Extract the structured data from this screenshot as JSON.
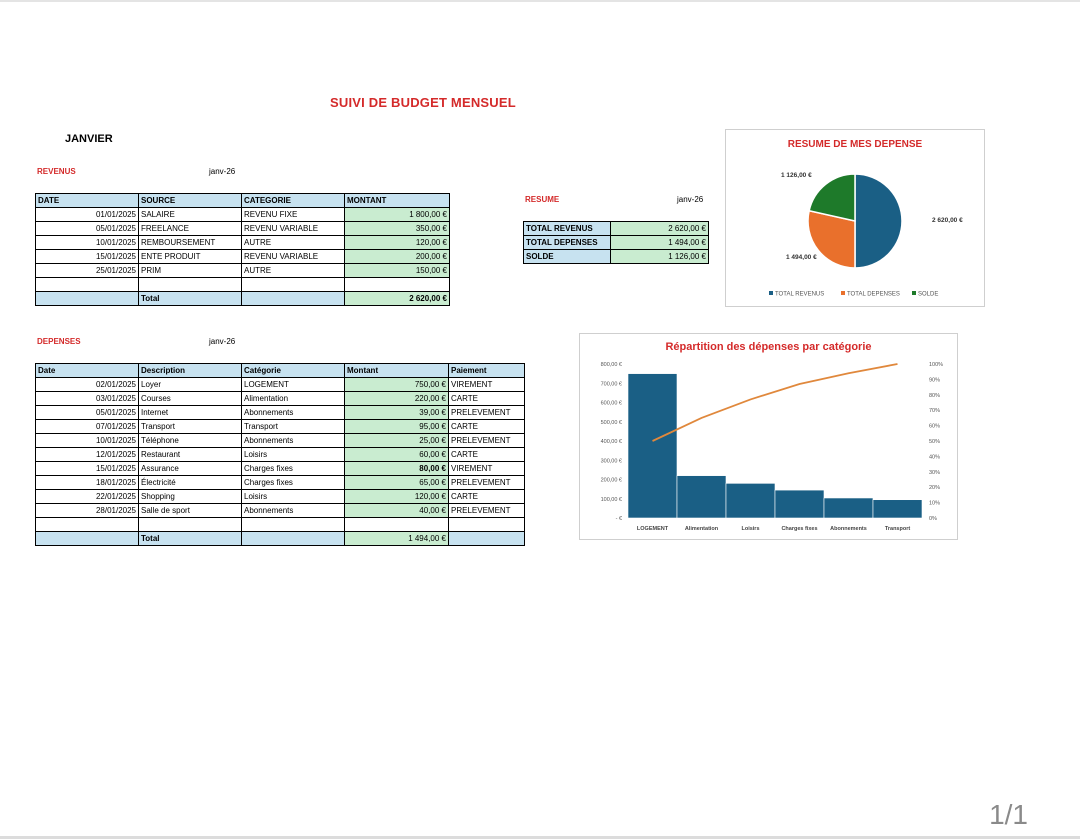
{
  "title": "SUIVI DE BUDGET MENSUEL",
  "month": "JANVIER",
  "revenus": {
    "label": "REVENUS",
    "date": "janv-26",
    "headers": [
      "DATE",
      "SOURCE",
      "CATEGORIE",
      "MONTANT"
    ],
    "rows": [
      [
        "01/01/2025",
        "SALAIRE",
        "REVENU FIXE",
        "1 800,00 €"
      ],
      [
        "05/01/2025",
        "FREELANCE",
        "REVENU VARIABLE",
        "350,00 €"
      ],
      [
        "10/01/2025",
        "REMBOURSEMENT",
        "AUTRE",
        "120,00 €"
      ],
      [
        "15/01/2025",
        "ENTE PRODUIT",
        "REVENU VARIABLE",
        "200,00 €"
      ],
      [
        "25/01/2025",
        "PRIM",
        "AUTRE",
        "150,00 €"
      ]
    ],
    "total_label": "Total",
    "total_value": "2 620,00 €"
  },
  "resume": {
    "label": "RESUME",
    "date": "janv-26",
    "rows": [
      [
        "TOTAL REVENUS",
        "2 620,00 €"
      ],
      [
        "TOTAL DEPENSES",
        "1 494,00 €"
      ],
      [
        "SOLDE",
        "1 126,00 €"
      ]
    ]
  },
  "depenses": {
    "label": "DEPENSES",
    "date": "janv-26",
    "headers": [
      "Date",
      "Description",
      "Catégorie",
      "Montant",
      "Paiement"
    ],
    "rows": [
      [
        "02/01/2025",
        "Loyer",
        "LOGEMENT",
        "750,00 €",
        "VIREMENT"
      ],
      [
        "03/01/2025",
        "Courses",
        "Alimentation",
        "220,00 €",
        "CARTE"
      ],
      [
        "05/01/2025",
        "Internet",
        "Abonnements",
        "39,00 €",
        "PRELEVEMENT"
      ],
      [
        "07/01/2025",
        "Transport",
        "Transport",
        "95,00 €",
        "CARTE"
      ],
      [
        "10/01/2025",
        "Téléphone",
        "Abonnements",
        "25,00 €",
        "PRELEVEMENT"
      ],
      [
        "12/01/2025",
        "Restaurant",
        "Loisirs",
        "60,00 €",
        "CARTE"
      ],
      [
        "15/01/2025",
        "Assurance",
        "Charges fixes",
        "80,00 €",
        "VIREMENT"
      ],
      [
        "18/01/2025",
        "Électricité",
        "Charges fixes",
        "65,00 €",
        "PRELEVEMENT"
      ],
      [
        "22/01/2025",
        "Shopping",
        "Loisirs",
        "120,00 €",
        "CARTE"
      ],
      [
        "28/01/2025",
        "Salle de sport",
        "Abonnements",
        "40,00 €",
        "PRELEVEMENT"
      ]
    ],
    "total_label": "Total",
    "total_value": "1 494,00 €"
  },
  "pie_chart": {
    "title": "RESUME DE MES DEPENSE",
    "chart_data": {
      "type": "pie",
      "labels": [
        "TOTAL REVENUS",
        "TOTAL DEPENSES",
        "SOLDE"
      ],
      "values": [
        2620,
        1494,
        1126
      ],
      "value_labels": [
        "2 620,00 €",
        "1 494,00 €",
        "1 126,00 €"
      ],
      "colors": [
        "#1a5f85",
        "#e9702c",
        "#1e7a2a"
      ],
      "legend": "bottom"
    }
  },
  "pareto_chart": {
    "title": "Répartition des dépenses par catégorie",
    "chart_data": {
      "type": "bar",
      "categories": [
        "LOGEMENT",
        "Alimentation",
        "Loisirs",
        "Charges fixes",
        "Abonnements",
        "Transport"
      ],
      "values": [
        750,
        220,
        180,
        145,
        104,
        95
      ],
      "cumulative_percent": [
        50,
        65,
        77,
        87,
        94,
        100
      ],
      "y_ticks": [
        "- €",
        "100,00 €",
        "200,00 €",
        "300,00 €",
        "400,00 €",
        "500,00 €",
        "600,00 €",
        "700,00 €",
        "800,00 €"
      ],
      "y2_ticks": [
        "0%",
        "10%",
        "20%",
        "30%",
        "40%",
        "50%",
        "60%",
        "70%",
        "80%",
        "90%",
        "100%"
      ],
      "ylim": [
        0,
        800
      ],
      "y2lim": [
        0,
        100
      ],
      "bar_color": "#1a5f85",
      "line_color": "#e0883c"
    }
  },
  "pager": "1/1"
}
